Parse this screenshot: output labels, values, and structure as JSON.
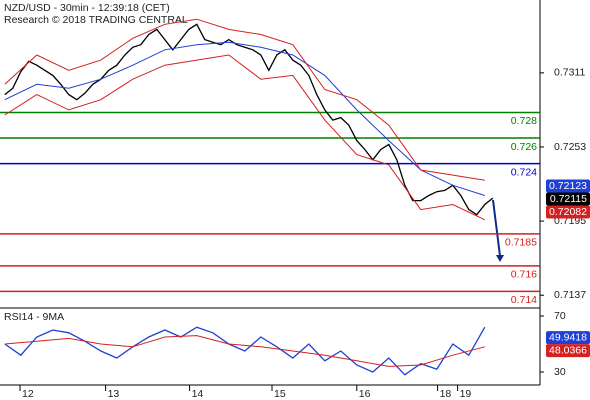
{
  "chart_data": [
    {
      "type": "line",
      "title": "NZD/USD - 30min - 12:39:18 (CET)",
      "subtitle": "Research © 2018 TRADING CENTRAL",
      "ylim": [
        0.7127,
        0.7368
      ],
      "xlim": [
        -0.6,
        66.9
      ],
      "yticks": [
        0.7311,
        0.7253,
        0.7195,
        0.7137
      ],
      "series": [
        {
          "color": "#000000",
          "x": [
            0,
            1,
            2,
            3,
            4,
            5,
            6,
            7,
            8,
            9,
            10,
            11,
            12,
            13,
            14,
            15,
            16,
            17,
            18,
            19,
            20,
            21,
            22,
            23,
            24,
            25,
            26,
            27,
            28,
            29,
            30,
            31,
            32,
            33,
            34,
            35,
            36,
            37,
            38,
            39,
            40,
            41,
            42,
            43,
            44,
            45,
            46,
            47,
            48,
            49,
            50,
            51,
            52,
            53,
            54,
            55,
            56,
            57,
            58,
            59,
            60,
            61
          ],
          "values": [
            0.7294,
            0.7299,
            0.7312,
            0.732,
            0.7317,
            0.7313,
            0.7309,
            0.7302,
            0.7294,
            0.729,
            0.7295,
            0.7302,
            0.7306,
            0.7313,
            0.7317,
            0.7325,
            0.7331,
            0.7333,
            0.7341,
            0.7345,
            0.7337,
            0.7329,
            0.7337,
            0.7345,
            0.7349,
            0.7337,
            0.7335,
            0.7333,
            0.7337,
            0.7333,
            0.7331,
            0.7329,
            0.7325,
            0.7313,
            0.7325,
            0.7329,
            0.7321,
            0.7317,
            0.7309,
            0.7294,
            0.7282,
            0.7274,
            0.7276,
            0.727,
            0.7258,
            0.7251,
            0.7243,
            0.7251,
            0.7255,
            0.7243,
            0.7223,
            0.7211,
            0.7211,
            0.7215,
            0.7218,
            0.7219,
            0.7223,
            0.7215,
            0.7204,
            0.72,
            0.7208,
            0.7213
          ]
        },
        {
          "color": "#1f3fd6",
          "x": [
            0,
            4,
            8,
            12,
            16,
            20,
            24,
            28,
            32,
            36,
            40,
            44,
            48,
            52,
            56,
            60
          ],
          "values": [
            0.729,
            0.7302,
            0.7299,
            0.7306,
            0.7317,
            0.7329,
            0.7333,
            0.7335,
            0.7331,
            0.7325,
            0.7309,
            0.7282,
            0.7258,
            0.7235,
            0.7223,
            0.7215
          ]
        },
        {
          "color": "#d42020",
          "x": [
            0,
            4,
            8,
            12,
            16,
            20,
            24,
            28,
            32,
            36,
            40,
            44,
            48,
            52,
            56,
            60
          ],
          "values": [
            0.7302,
            0.7325,
            0.7313,
            0.7321,
            0.7338,
            0.7349,
            0.7353,
            0.7345,
            0.7341,
            0.7333,
            0.7298,
            0.729,
            0.727,
            0.7235,
            0.7231,
            0.7227
          ]
        },
        {
          "color": "#d42020",
          "x": [
            0,
            4,
            8,
            12,
            16,
            20,
            24,
            28,
            32,
            36,
            40,
            44,
            48,
            52,
            56,
            60
          ],
          "values": [
            0.7278,
            0.7294,
            0.7282,
            0.729,
            0.7306,
            0.7317,
            0.7321,
            0.7325,
            0.7306,
            0.7309,
            0.7274,
            0.7247,
            0.7239,
            0.7204,
            0.7208,
            0.7196
          ]
        }
      ],
      "levels": [
        {
          "value": 0.728,
          "color": "#008000"
        },
        {
          "value": 0.726,
          "color": "#008000"
        },
        {
          "value": 0.724,
          "color": "#0000cc"
        },
        {
          "value": 0.7185,
          "color": "#d42020"
        },
        {
          "value": 0.716,
          "color": "#d42020"
        },
        {
          "value": 0.714,
          "color": "#d42020"
        }
      ],
      "price_tags": [
        {
          "value": 0.72123,
          "color": "#1f3fd6"
        },
        {
          "value": 0.72115,
          "color": "#000000"
        },
        {
          "value": 0.72082,
          "color": "#d42020"
        }
      ]
    },
    {
      "type": "line",
      "title": "RSI14 - 9MA",
      "ylim": [
        20.7,
        74.3
      ],
      "xlim": [
        -0.6,
        66.9
      ],
      "yticks": [
        70,
        30
      ],
      "xticks": [
        {
          "value": 1.9,
          "label": "12"
        },
        {
          "value": 12.6,
          "label": "13"
        },
        {
          "value": 23.1,
          "label": "14"
        },
        {
          "value": 33.4,
          "label": "15"
        },
        {
          "value": 44,
          "label": "16"
        },
        {
          "value": 54.1,
          "label": "18"
        },
        {
          "value": 56.6,
          "label": "19"
        }
      ],
      "series": [
        {
          "color": "#1f3fd6",
          "x": [
            0,
            2,
            4,
            6,
            8,
            10,
            12,
            14,
            16,
            18,
            20,
            22,
            24,
            26,
            28,
            30,
            32,
            34,
            36,
            38,
            40,
            42,
            44,
            46,
            48,
            50,
            52,
            54,
            56,
            58,
            60
          ],
          "values": [
            50,
            42,
            55,
            60,
            58,
            52,
            45,
            40,
            48,
            55,
            60,
            55,
            62,
            58,
            50,
            45,
            55,
            48,
            40,
            50,
            38,
            45,
            35,
            30,
            40,
            28,
            36,
            32,
            50,
            42,
            62
          ]
        },
        {
          "color": "#d42020",
          "x": [
            0,
            4,
            8,
            12,
            16,
            20,
            24,
            28,
            32,
            36,
            40,
            44,
            48,
            52,
            56,
            60
          ],
          "values": [
            50,
            52,
            54,
            50,
            48,
            55,
            56,
            50,
            48,
            45,
            42,
            38,
            34,
            35,
            42,
            48
          ]
        }
      ],
      "price_tags": [
        {
          "value": 49.9418,
          "color": "#1f3fd6"
        },
        {
          "value": 48.0366,
          "color": "#d42020"
        }
      ]
    }
  ]
}
